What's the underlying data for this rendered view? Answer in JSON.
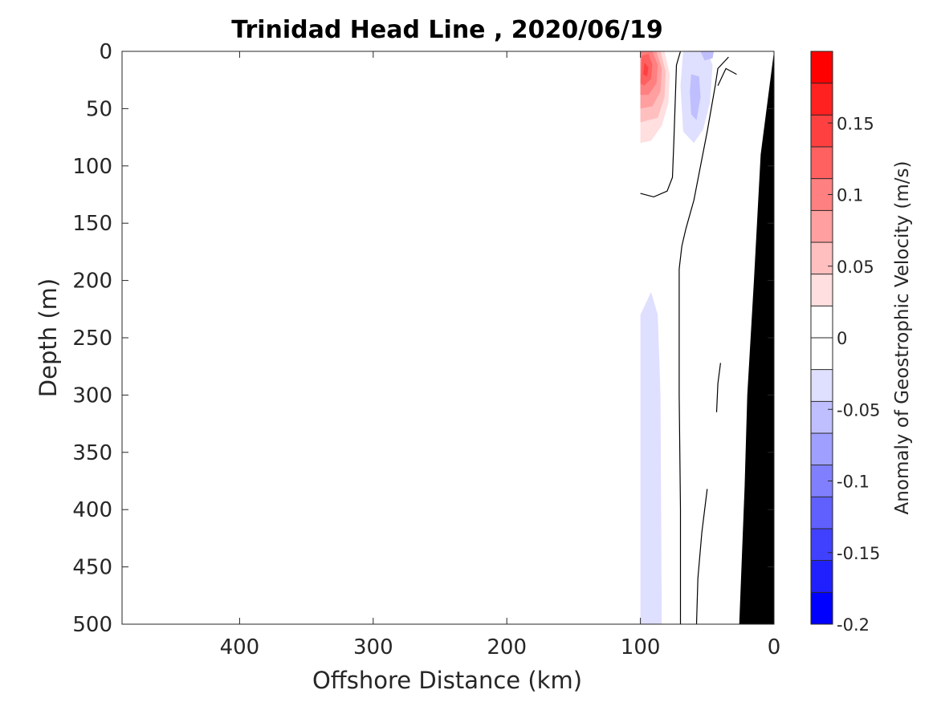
{
  "chart_data": {
    "type": "heatmap",
    "title": "Trinidad Head Line , 2020/06/19",
    "xlabel": "Offshore Distance (km)",
    "ylabel": "Depth (m)",
    "xlim": [
      488,
      0
    ],
    "ylim": [
      0,
      500
    ],
    "x_reversed": true,
    "y_reversed": true,
    "xticks": [
      400,
      300,
      200,
      100,
      0
    ],
    "yticks": [
      0,
      50,
      100,
      150,
      200,
      250,
      300,
      350,
      400,
      450,
      500
    ],
    "colorbar": {
      "label": "Anomaly of Geostrophic Velocity (m/s)",
      "range": [
        -0.2,
        0.2
      ],
      "step": 0.025,
      "tick_labels": [
        "-0.2",
        "-0.15",
        "-0.1",
        "-0.05",
        "0",
        "0.05",
        "0.1",
        "0.15"
      ],
      "tick_values": [
        -0.2,
        -0.15,
        -0.1,
        -0.05,
        0,
        0.05,
        0.1,
        0.15
      ],
      "colors": [
        "#0000ff",
        "#2020ff",
        "#4040ff",
        "#6060ff",
        "#8080ff",
        "#9f9fff",
        "#bfbfff",
        "#dfdfff",
        "#ffffff",
        "#ffffff",
        "#ffdfdf",
        "#ffbfbf",
        "#ff9f9f",
        "#ff8080",
        "#ff6060",
        "#ff4040",
        "#ff2020",
        "#ff0000"
      ]
    },
    "colors": {
      "positive": "#ff0000",
      "negative": "#0000ff",
      "bathymetry": "#000000",
      "zero_contour": "#000000"
    },
    "filled_regions": [
      {
        "sign": "positive",
        "level": 0.025,
        "points": [
          [
            100,
            0
          ],
          [
            80,
            0
          ],
          [
            76,
            15
          ],
          [
            76,
            45
          ],
          [
            80,
            70
          ],
          [
            87,
            92
          ],
          [
            100,
            92
          ]
        ]
      },
      {
        "sign": "positive",
        "level": 0.05,
        "points": [
          [
            100,
            0
          ],
          [
            82,
            0
          ],
          [
            78,
            20
          ],
          [
            79,
            45
          ],
          [
            84,
            65
          ],
          [
            92,
            78
          ],
          [
            100,
            80
          ]
        ]
      },
      {
        "sign": "positive",
        "level": 0.075,
        "points": [
          [
            100,
            0
          ],
          [
            85,
            0
          ],
          [
            81,
            18
          ],
          [
            82,
            40
          ],
          [
            87,
            58
          ],
          [
            100,
            62
          ]
        ]
      },
      {
        "sign": "positive",
        "level": 0.1,
        "points": [
          [
            100,
            0
          ],
          [
            88,
            0
          ],
          [
            84,
            15
          ],
          [
            85,
            35
          ],
          [
            91,
            48
          ],
          [
            100,
            50
          ]
        ]
      },
      {
        "sign": "positive",
        "level": 0.125,
        "points": [
          [
            100,
            0
          ],
          [
            91,
            0
          ],
          [
            87,
            12
          ],
          [
            88,
            28
          ],
          [
            94,
            38
          ],
          [
            100,
            38
          ]
        ]
      },
      {
        "sign": "positive",
        "level": 0.15,
        "points": [
          [
            99,
            4
          ],
          [
            94,
            2
          ],
          [
            91,
            12
          ],
          [
            92,
            24
          ],
          [
            97,
            30
          ],
          [
            100,
            28
          ]
        ]
      },
      {
        "sign": "positive",
        "level": 0.175,
        "points": [
          [
            97,
            10
          ],
          [
            94,
            14
          ],
          [
            95,
            22
          ],
          [
            98,
            20
          ]
        ]
      },
      {
        "sign": "positive",
        "level": 0.025,
        "points": [
          [
            38,
            35
          ],
          [
            28,
            38
          ],
          [
            28,
            62
          ],
          [
            38,
            60
          ]
        ]
      },
      {
        "sign": "negative",
        "level": -0.025,
        "points": [
          [
            68,
            0
          ],
          [
            50,
            0
          ],
          [
            46,
            12
          ],
          [
            48,
            45
          ],
          [
            53,
            68
          ],
          [
            60,
            80
          ],
          [
            68,
            70
          ],
          [
            70,
            30
          ]
        ]
      },
      {
        "sign": "negative",
        "level": -0.05,
        "points": [
          [
            62,
            20
          ],
          [
            56,
            22
          ],
          [
            55,
            40
          ],
          [
            58,
            60
          ],
          [
            62,
            55
          ],
          [
            63,
            35
          ]
        ]
      },
      {
        "sign": "negative",
        "level": -0.05,
        "points": [
          [
            55,
            0
          ],
          [
            45,
            0
          ],
          [
            46,
            6
          ],
          [
            52,
            8
          ]
        ]
      },
      {
        "sign": "negative",
        "level": -0.025,
        "points": [
          [
            100,
            230
          ],
          [
            92,
            210
          ],
          [
            87,
            230
          ],
          [
            85,
            300
          ],
          [
            84,
            500
          ],
          [
            100,
            500
          ]
        ]
      }
    ],
    "zero_contours": [
      [
        [
          70,
          0
        ],
        [
          73,
          12
        ],
        [
          74,
          45
        ],
        [
          75,
          80
        ],
        [
          76,
          110
        ],
        [
          80,
          122
        ],
        [
          90,
          127
        ],
        [
          100,
          124
        ]
      ],
      [
        [
          34,
          5
        ],
        [
          42,
          15
        ],
        [
          44,
          30
        ],
        [
          50,
          70
        ],
        [
          55,
          100
        ],
        [
          60,
          130
        ],
        [
          66,
          155
        ],
        [
          69,
          170
        ],
        [
          71,
          190
        ],
        [
          71,
          300
        ],
        [
          70,
          400
        ],
        [
          70,
          500
        ]
      ],
      [
        [
          28,
          20
        ],
        [
          36,
          15
        ],
        [
          42,
          30
        ]
      ],
      [
        [
          40,
          272
        ],
        [
          42,
          290
        ],
        [
          43,
          315
        ]
      ],
      [
        [
          50,
          382
        ],
        [
          54,
          420
        ],
        [
          57,
          460
        ],
        [
          58,
          500
        ]
      ]
    ],
    "bathymetry": [
      [
        0,
        0
      ],
      [
        10,
        90
      ],
      [
        15,
        200
      ],
      [
        20,
        300
      ],
      [
        22,
        380
      ],
      [
        26,
        500
      ],
      [
        0,
        500
      ]
    ]
  }
}
